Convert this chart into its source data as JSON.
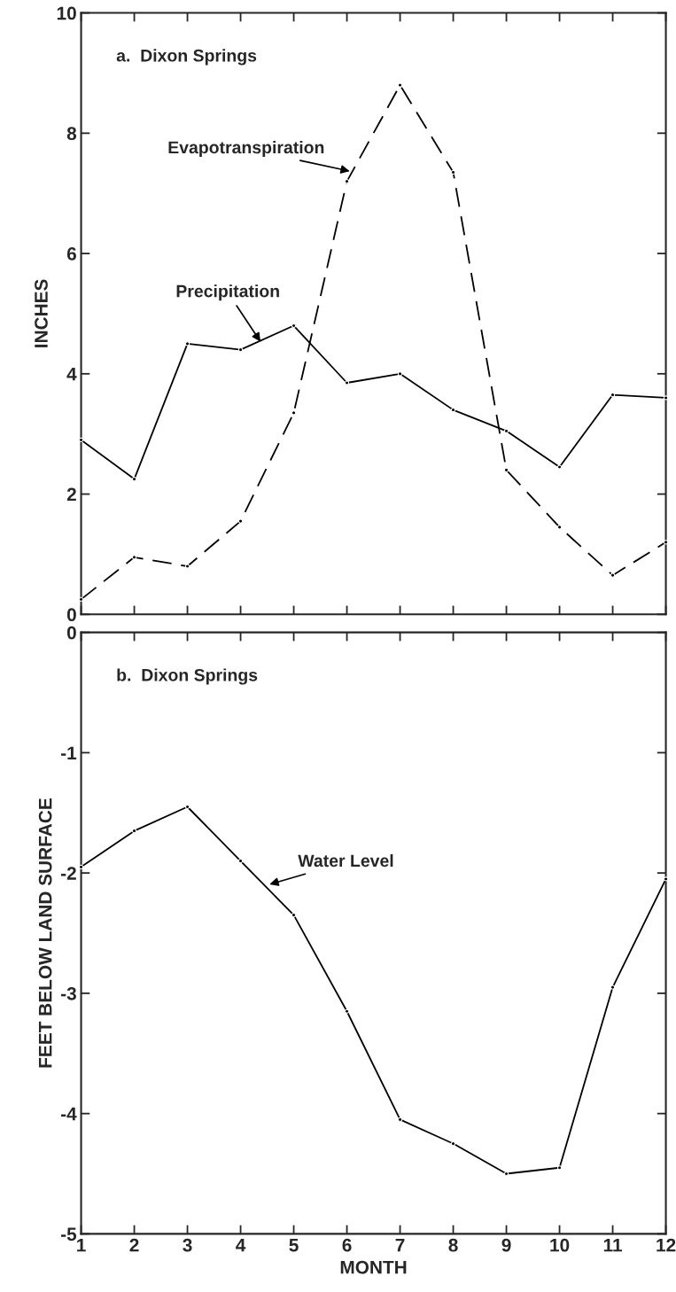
{
  "chart_data": [
    {
      "type": "line",
      "title": "a.  Dixon Springs",
      "ylabel": "INCHES",
      "x": [
        1,
        2,
        3,
        4,
        5,
        6,
        7,
        8,
        9,
        10,
        11,
        12
      ],
      "series": [
        {
          "color": "#000000",
          "line_style": "solid",
          "values": [
            2.9,
            2.25,
            4.5,
            4.4,
            4.8,
            3.85,
            4.0,
            3.4,
            3.05,
            2.45,
            3.65,
            3.6
          ]
        },
        {
          "color": "#000000",
          "line_style": "dashed",
          "values": [
            0.25,
            0.95,
            0.8,
            1.55,
            3.35,
            7.2,
            8.8,
            7.35,
            2.4,
            1.45,
            0.65,
            1.2
          ]
        }
      ],
      "annotations": [
        {
          "text": "Evapotranspiration",
          "x": 6.1,
          "y": 7.36
        },
        {
          "text": "Precipitation",
          "x": 4.4,
          "y": 4.5
        }
      ],
      "xlim": [
        1,
        12
      ],
      "xticks": [
        1,
        2,
        3,
        4,
        5,
        6,
        7,
        8,
        9,
        10,
        11,
        12
      ],
      "ylim": [
        0,
        10
      ],
      "yticks": [
        0,
        2,
        4,
        6,
        8,
        10
      ],
      "tick_labels": "y",
      "marker": "circle",
      "grid": false,
      "legend": false
    },
    {
      "type": "line",
      "title": "b.  Dixon Springs",
      "xlabel": "MONTH",
      "ylabel": "FEET BELOW LAND SURFACE",
      "x": [
        1,
        2,
        3,
        4,
        5,
        6,
        7,
        8,
        9,
        10,
        11,
        12
      ],
      "series": [
        {
          "color": "#000000",
          "line_style": "solid",
          "values": [
            -1.95,
            -1.65,
            -1.45,
            -1.9,
            -2.35,
            -3.15,
            -4.05,
            -4.25,
            -4.5,
            -4.45,
            -2.95,
            -2.05
          ]
        }
      ],
      "annotations": [
        {
          "text": "Water Level",
          "x": 4.5,
          "y": -2.1
        }
      ],
      "xlim": [
        1,
        12
      ],
      "xticks": [
        1,
        2,
        3,
        4,
        5,
        6,
        7,
        8,
        9,
        10,
        11,
        12
      ],
      "ylim": [
        -5,
        0
      ],
      "yticks": [
        -5,
        -4,
        -3,
        -2,
        -1,
        0
      ],
      "marker": "circle",
      "grid": false,
      "legend": false
    }
  ]
}
